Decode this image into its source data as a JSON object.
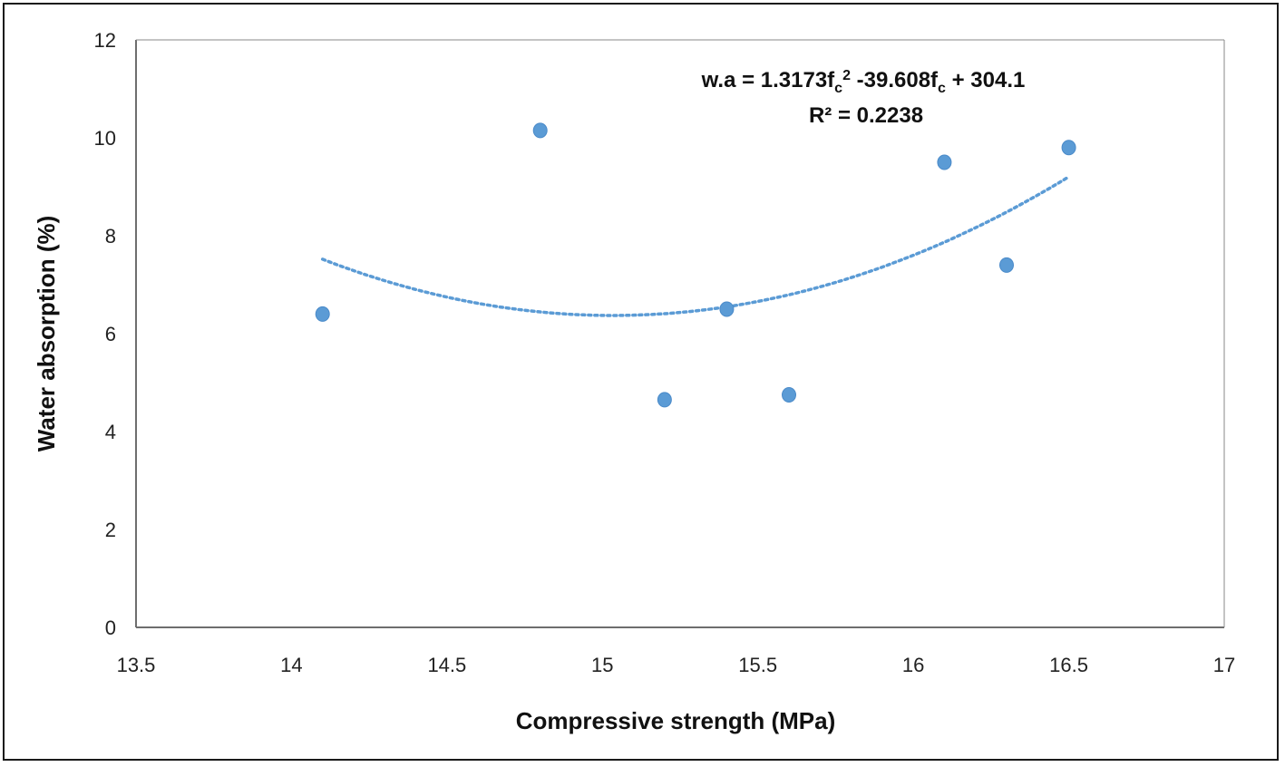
{
  "chart_data": {
    "type": "scatter",
    "title": "",
    "xlabel": "Compressive strength (MPa)",
    "ylabel": "Water absorption (%)",
    "xlim": [
      13.5,
      17
    ],
    "ylim": [
      0,
      12
    ],
    "x_ticks": [
      13.5,
      14,
      14.5,
      15,
      15.5,
      16,
      16.5,
      17
    ],
    "y_ticks": [
      0,
      2,
      4,
      6,
      8,
      10,
      12
    ],
    "x_tick_labels": [
      "13.5",
      "14",
      "14.5",
      "15",
      "15.5",
      "16",
      "16.5",
      "17"
    ],
    "y_tick_labels": [
      "0",
      "2",
      "4",
      "6",
      "8",
      "10",
      "12"
    ],
    "grid": false,
    "marker_color": "#5b9bd5",
    "series": [
      {
        "points": [
          {
            "x": 14.1,
            "y": 6.4
          },
          {
            "x": 14.8,
            "y": 10.15
          },
          {
            "x": 15.2,
            "y": 4.65
          },
          {
            "x": 15.4,
            "y": 6.5
          },
          {
            "x": 15.6,
            "y": 4.75
          },
          {
            "x": 16.1,
            "y": 9.5
          },
          {
            "x": 16.3,
            "y": 7.4
          },
          {
            "x": 16.5,
            "y": 9.8
          }
        ]
      }
    ],
    "trendline": {
      "type": "polynomial",
      "order": 2,
      "style": "dotted",
      "color": "#5b9bd5",
      "coefficients": [
        1.3173,
        -39.608,
        304.1
      ],
      "x_range": [
        14.1,
        16.5
      ],
      "equation_parts": {
        "prefix": "w.a = 1.3173f",
        "sub1": "c",
        "sup": "2",
        "middle": " -39.608f",
        "sub2": "c",
        "suffix": " + 304.1"
      },
      "r_squared_text": "R² = 0.2238"
    }
  }
}
